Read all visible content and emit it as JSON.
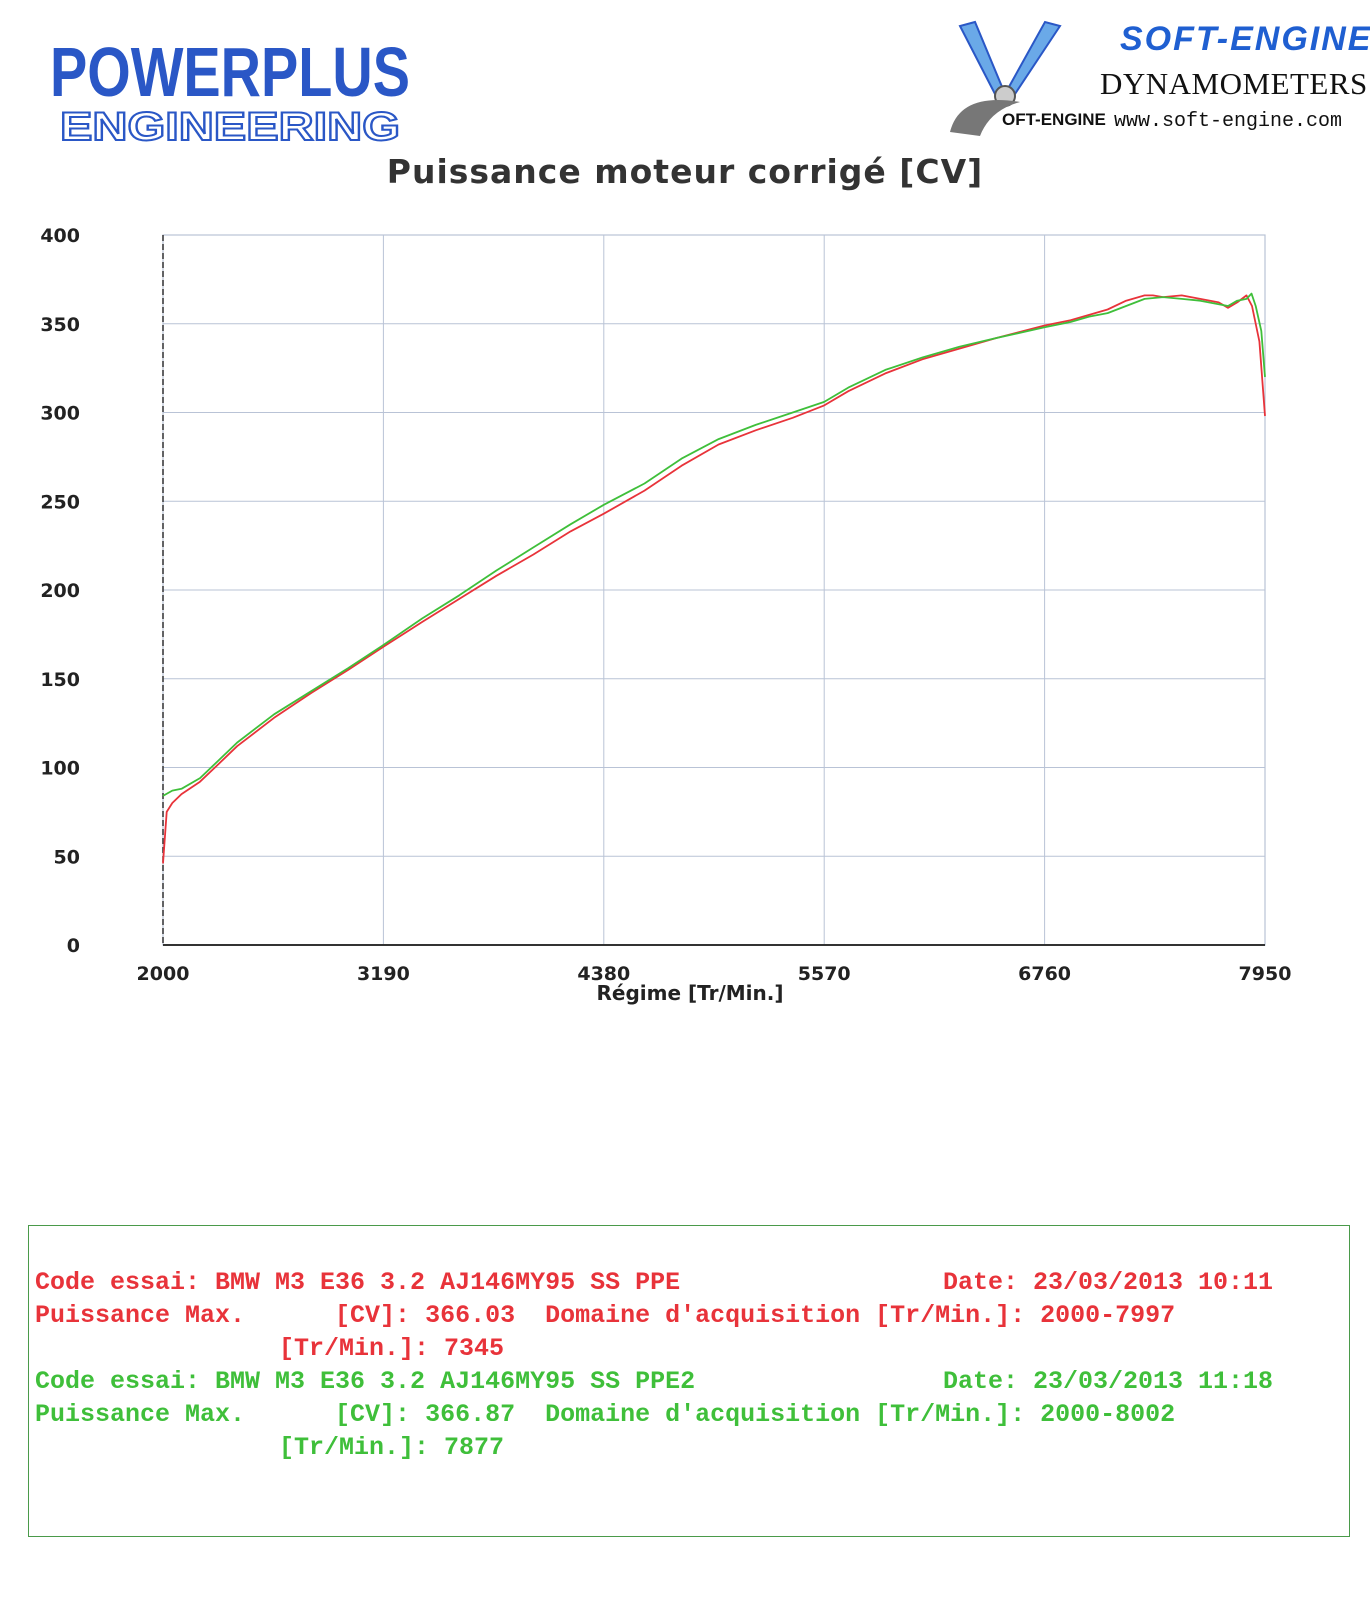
{
  "logo_left": {
    "line1": "POWERPLUS",
    "line2": "ENGINEERING"
  },
  "logo_right": {
    "brand": "SOFT-ENGINE",
    "subtitle": "DYNAMOMETERS",
    "url": "www.soft-engine.com",
    "small_mark": "OFT-ENGINE"
  },
  "colors": {
    "run1": "#e8333a",
    "run2": "#3fbf3a",
    "grid": "#b9c3d6",
    "brand_blue": "#2a57c6"
  },
  "chart_data": {
    "type": "line",
    "title": "Puissance moteur corrigé [CV]",
    "xlabel": "Régime [Tr/Min.]",
    "ylabel": "",
    "xlim": [
      2000,
      7950
    ],
    "ylim": [
      0,
      400
    ],
    "x_ticks": [
      2000,
      3190,
      4380,
      5570,
      6760,
      7950
    ],
    "y_ticks": [
      0,
      50,
      100,
      150,
      200,
      250,
      300,
      350,
      400
    ],
    "grid": true,
    "series": [
      {
        "color": "#e8333a",
        "points": [
          [
            2000,
            46
          ],
          [
            2020,
            75
          ],
          [
            2050,
            80
          ],
          [
            2100,
            85
          ],
          [
            2200,
            92
          ],
          [
            2300,
            102
          ],
          [
            2400,
            112
          ],
          [
            2600,
            128
          ],
          [
            2800,
            142
          ],
          [
            3000,
            155
          ],
          [
            3190,
            168
          ],
          [
            3400,
            182
          ],
          [
            3600,
            195
          ],
          [
            3800,
            208
          ],
          [
            4000,
            220
          ],
          [
            4200,
            233
          ],
          [
            4380,
            243
          ],
          [
            4600,
            256
          ],
          [
            4800,
            270
          ],
          [
            5000,
            282
          ],
          [
            5200,
            290
          ],
          [
            5400,
            297
          ],
          [
            5570,
            304
          ],
          [
            5700,
            312
          ],
          [
            5900,
            322
          ],
          [
            6100,
            330
          ],
          [
            6300,
            336
          ],
          [
            6500,
            342
          ],
          [
            6760,
            349
          ],
          [
            6900,
            352
          ],
          [
            7000,
            355
          ],
          [
            7100,
            358
          ],
          [
            7200,
            363
          ],
          [
            7300,
            366
          ],
          [
            7345,
            366
          ],
          [
            7400,
            365
          ],
          [
            7500,
            366
          ],
          [
            7600,
            364
          ],
          [
            7700,
            362
          ],
          [
            7750,
            359
          ],
          [
            7800,
            362
          ],
          [
            7850,
            366
          ],
          [
            7880,
            360
          ],
          [
            7920,
            340
          ],
          [
            7950,
            298
          ]
        ]
      },
      {
        "color": "#3fbf3a",
        "points": [
          [
            2000,
            84
          ],
          [
            2050,
            87
          ],
          [
            2100,
            88
          ],
          [
            2200,
            94
          ],
          [
            2300,
            104
          ],
          [
            2400,
            114
          ],
          [
            2600,
            130
          ],
          [
            2800,
            143
          ],
          [
            3000,
            156
          ],
          [
            3190,
            169
          ],
          [
            3400,
            184
          ],
          [
            3600,
            197
          ],
          [
            3800,
            211
          ],
          [
            4000,
            224
          ],
          [
            4200,
            237
          ],
          [
            4380,
            248
          ],
          [
            4600,
            260
          ],
          [
            4800,
            274
          ],
          [
            5000,
            285
          ],
          [
            5200,
            293
          ],
          [
            5400,
            300
          ],
          [
            5570,
            306
          ],
          [
            5700,
            314
          ],
          [
            5900,
            324
          ],
          [
            6100,
            331
          ],
          [
            6300,
            337
          ],
          [
            6500,
            342
          ],
          [
            6760,
            348
          ],
          [
            6900,
            351
          ],
          [
            7000,
            354
          ],
          [
            7100,
            356
          ],
          [
            7200,
            360
          ],
          [
            7300,
            364
          ],
          [
            7400,
            365
          ],
          [
            7500,
            364
          ],
          [
            7600,
            363
          ],
          [
            7700,
            361
          ],
          [
            7750,
            360
          ],
          [
            7800,
            363
          ],
          [
            7850,
            364
          ],
          [
            7877,
            367
          ],
          [
            7900,
            360
          ],
          [
            7930,
            346
          ],
          [
            7950,
            320
          ]
        ]
      }
    ]
  },
  "info": {
    "run1": {
      "line1_left": "Code essai: BMW M3 E36 3.2 AJ146MY95 SS PPE",
      "line1_right": "Date: 23/03/2013 10:11",
      "line2": "Puissance Max.      [CV]: 366.03  Domaine d'acquisition [Tr/Min.]: 2000-7997",
      "line3": "[Tr/Min.]: 7345"
    },
    "run2": {
      "line1_left": "Code essai: BMW M3 E36 3.2 AJ146MY95 SS PPE2",
      "line1_right": "Date: 23/03/2013 11:18",
      "line2": "Puissance Max.      [CV]: 366.87  Domaine d'acquisition [Tr/Min.]: 2000-8002",
      "line3": "[Tr/Min.]: 7877"
    }
  }
}
